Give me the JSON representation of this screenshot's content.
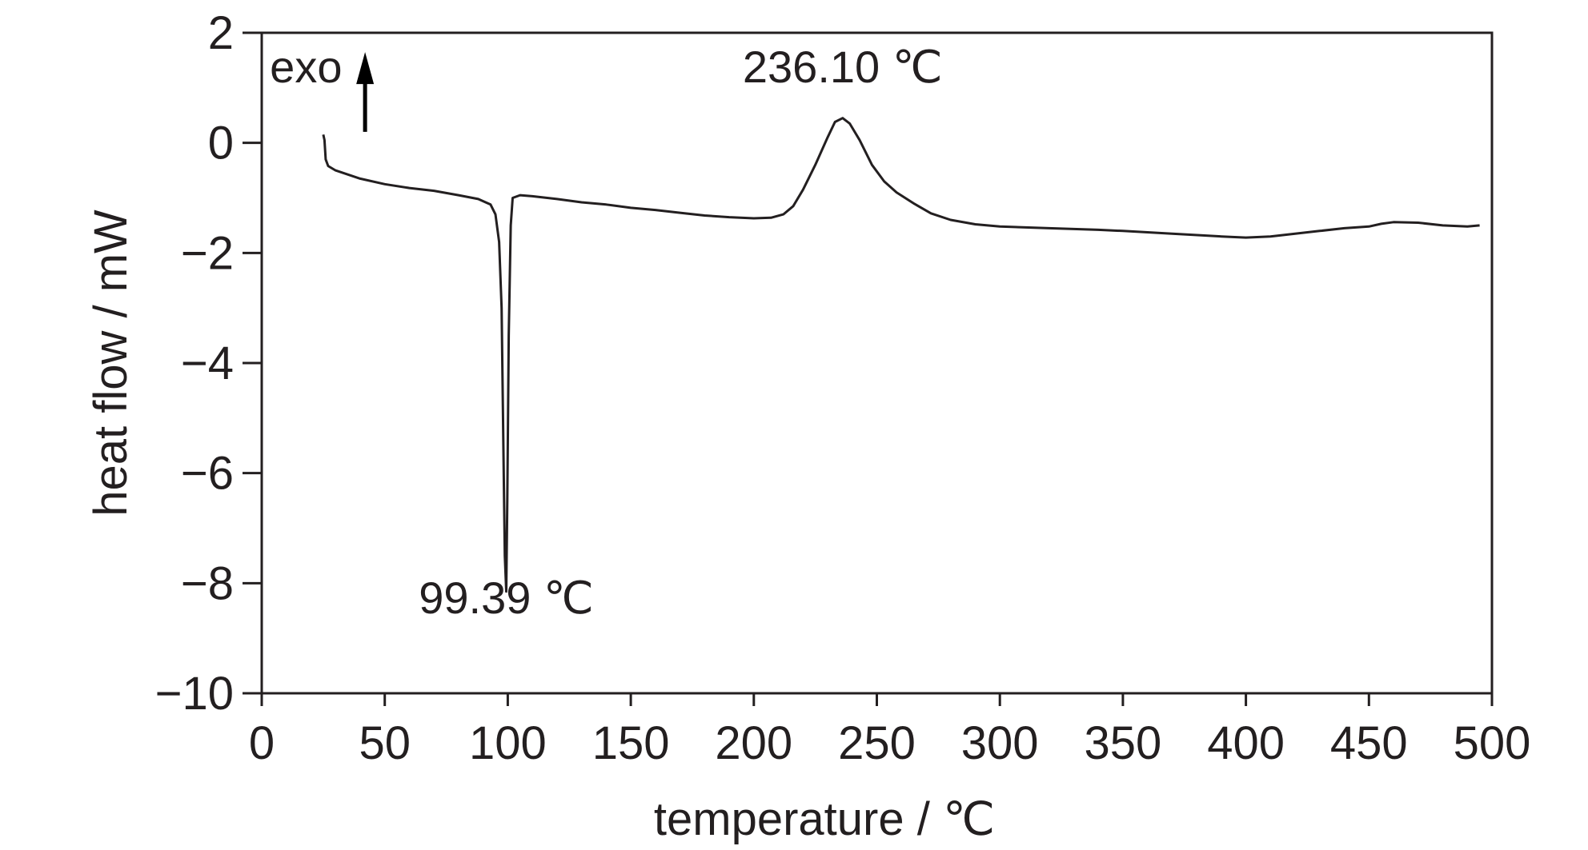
{
  "chart_data": {
    "type": "line",
    "xlabel": "temperature / ℃",
    "ylabel": "heat flow / mW",
    "xlim": [
      0,
      500
    ],
    "ylim": [
      -10,
      2
    ],
    "x_ticks": [
      {
        "value": 0,
        "label": "0"
      },
      {
        "value": 50,
        "label": "50"
      },
      {
        "value": 100,
        "label": "100"
      },
      {
        "value": 150,
        "label": "150"
      },
      {
        "value": 200,
        "label": "200"
      },
      {
        "value": 250,
        "label": "250"
      },
      {
        "value": 300,
        "label": "300"
      },
      {
        "value": 350,
        "label": "350"
      },
      {
        "value": 400,
        "label": "400"
      },
      {
        "value": 450,
        "label": "450"
      },
      {
        "value": 500,
        "label": "500"
      }
    ],
    "y_ticks": [
      {
        "value": 2,
        "label": "2"
      },
      {
        "value": 0,
        "label": "0"
      },
      {
        "value": -2,
        "label": "−2"
      },
      {
        "value": -4,
        "label": "−4"
      },
      {
        "value": -6,
        "label": "−6"
      },
      {
        "value": -8,
        "label": "−8"
      },
      {
        "value": -10,
        "label": "−10"
      }
    ],
    "grid": false,
    "series": [
      {
        "color": "#231f20",
        "points": [
          [
            25,
            0.15
          ],
          [
            25.5,
            0.05
          ],
          [
            26,
            -0.3
          ],
          [
            27,
            -0.42
          ],
          [
            30,
            -0.5
          ],
          [
            40,
            -0.65
          ],
          [
            50,
            -0.75
          ],
          [
            60,
            -0.82
          ],
          [
            70,
            -0.87
          ],
          [
            80,
            -0.95
          ],
          [
            88,
            -1.02
          ],
          [
            93,
            -1.12
          ],
          [
            95,
            -1.3
          ],
          [
            96.5,
            -1.8
          ],
          [
            97.5,
            -3.0
          ],
          [
            98.2,
            -5.5
          ],
          [
            98.8,
            -7.5
          ],
          [
            99.39,
            -8.15
          ],
          [
            99.8,
            -6.5
          ],
          [
            100.4,
            -3.5
          ],
          [
            101.2,
            -1.5
          ],
          [
            102,
            -1.0
          ],
          [
            105,
            -0.95
          ],
          [
            110,
            -0.97
          ],
          [
            120,
            -1.02
          ],
          [
            130,
            -1.08
          ],
          [
            140,
            -1.12
          ],
          [
            150,
            -1.18
          ],
          [
            160,
            -1.22
          ],
          [
            170,
            -1.27
          ],
          [
            180,
            -1.32
          ],
          [
            190,
            -1.35
          ],
          [
            200,
            -1.37
          ],
          [
            207,
            -1.36
          ],
          [
            212,
            -1.3
          ],
          [
            216,
            -1.15
          ],
          [
            220,
            -0.85
          ],
          [
            225,
            -0.4
          ],
          [
            230,
            0.1
          ],
          [
            233,
            0.38
          ],
          [
            236.1,
            0.45
          ],
          [
            239,
            0.35
          ],
          [
            243,
            0.05
          ],
          [
            248,
            -0.4
          ],
          [
            253,
            -0.7
          ],
          [
            258,
            -0.9
          ],
          [
            265,
            -1.1
          ],
          [
            272,
            -1.28
          ],
          [
            280,
            -1.4
          ],
          [
            290,
            -1.48
          ],
          [
            300,
            -1.52
          ],
          [
            320,
            -1.55
          ],
          [
            340,
            -1.58
          ],
          [
            350,
            -1.6
          ],
          [
            370,
            -1.65
          ],
          [
            390,
            -1.7
          ],
          [
            400,
            -1.72
          ],
          [
            410,
            -1.7
          ],
          [
            420,
            -1.65
          ],
          [
            430,
            -1.6
          ],
          [
            440,
            -1.55
          ],
          [
            450,
            -1.52
          ],
          [
            455,
            -1.47
          ],
          [
            460,
            -1.44
          ],
          [
            470,
            -1.45
          ],
          [
            480,
            -1.5
          ],
          [
            490,
            -1.52
          ],
          [
            495,
            -1.5
          ]
        ]
      }
    ],
    "annotations": [
      {
        "id": "exo-label",
        "text": "exo",
        "x": 18,
        "y": 1.1
      },
      {
        "id": "peak-endo",
        "text": "99.39 ℃",
        "x": 99.39,
        "y": -8.55
      },
      {
        "id": "peak-exo",
        "text": "236.10 ℃",
        "x": 236.1,
        "y": 1.1
      }
    ],
    "exo_arrow": {
      "x": 42,
      "y_from": 0.2,
      "y_to": 1.65
    }
  }
}
